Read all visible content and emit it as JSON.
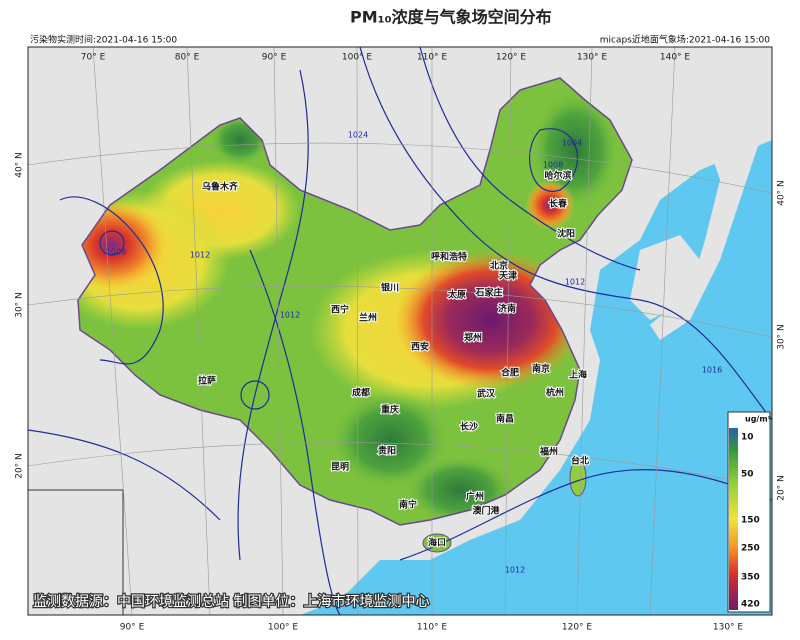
{
  "header": {
    "title": "PM₁₀浓度与气象场空间分布",
    "pollutant_time": "污染物实测时间:2021-04-16 15:00",
    "met_time": "micaps近地面气象场:2021-04-16 15:00"
  },
  "top_lon_labels": [
    "70° E",
    "80° E",
    "90° E",
    "100° E",
    "110° E",
    "120° E",
    "130° E",
    "140° E"
  ],
  "bottom_lon_labels": [
    "90° E",
    "100° E",
    "110° E",
    "120° E",
    "130° E"
  ],
  "left_lat_labels": [
    "40° N",
    "30° N",
    "20° N"
  ],
  "right_lat_labels": [
    "40° N",
    "30° N",
    "20° N"
  ],
  "cities": [
    "乌鲁木齐",
    "哈尔滨",
    "长春",
    "沈阳",
    "呼和浩特",
    "北京",
    "天津",
    "太原",
    "石家庄",
    "济南",
    "银川",
    "西宁",
    "兰州",
    "郑州",
    "西安",
    "合肥",
    "南京",
    "上海",
    "拉萨",
    "成都",
    "武汉",
    "杭州",
    "重庆",
    "长沙",
    "南昌",
    "贵阳",
    "福州",
    "台北",
    "昆明",
    "南宁",
    "广州",
    "澳门港",
    "海口"
  ],
  "isobar_labels": [
    "1004",
    "1008",
    "1012",
    "1016",
    "1012",
    "1024",
    "1012",
    "1008",
    "1012"
  ],
  "legend": {
    "unit": "ug/m³",
    "ticks": [
      10,
      50,
      150,
      250,
      350,
      420
    ]
  },
  "footer": "监测数据源：中国环境监测总站   制图单位：上海市环境监测中心"
}
